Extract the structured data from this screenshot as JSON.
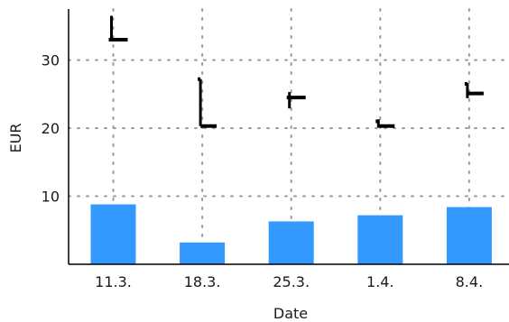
{
  "chart_data": {
    "type": "bar",
    "xlabel": "Date",
    "ylabel": "EUR",
    "categories": [
      "11.3.",
      "18.3.",
      "25.3.",
      "1.4.",
      "8.4."
    ],
    "ylim": [
      0,
      37.5
    ],
    "yticks": [
      10,
      20,
      30
    ],
    "grid": true,
    "series": [
      {
        "type": "bar",
        "values": [
          8.8,
          3.2,
          6.3,
          7.2,
          8.4
        ],
        "color": "#3399ff"
      },
      {
        "type": "ohlc",
        "open": [
          33.0,
          27.2,
          24.5,
          21.0,
          26.5
        ],
        "high": [
          36.5,
          27.2,
          25.3,
          21.3,
          26.6
        ],
        "low": [
          33.0,
          20.3,
          22.9,
          20.1,
          24.4
        ],
        "close": [
          33.0,
          20.3,
          24.5,
          20.3,
          25.1
        ],
        "color": "#000000"
      }
    ]
  }
}
